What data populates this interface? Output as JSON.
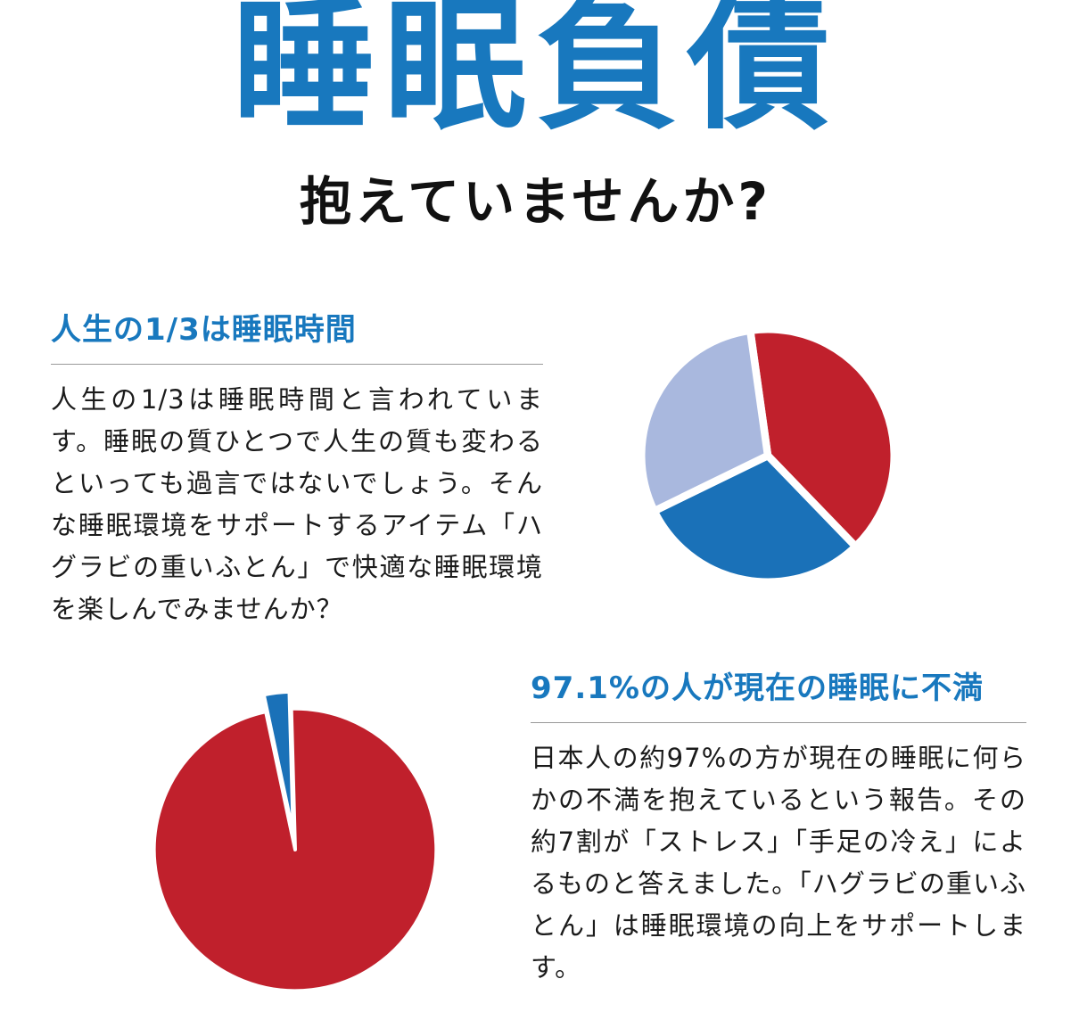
{
  "header": {
    "title": "睡眠負債",
    "subtitle": "抱えていませんか?"
  },
  "sections": {
    "sleep_time": {
      "heading": "人生の1/3は睡眠時間",
      "body": "人生の1/3は睡眠時間と言われています。睡眠の質ひとつで人生の質も変わるといっても過言ではないでしょう。そんな睡眠環境をサポートするアイテム「ハグラビの重いふとん」で快適な睡眠環境を楽しんでみませんか？"
    },
    "dissatisfaction": {
      "heading": "97.1%の人が現在の睡眠に不満",
      "body": "日本人の約97%の方が現在の睡眠に何らかの不満を抱えているという報告。その約7割が「ストレス」「手足の冷え」によるものと答えました。「ハグラビの重いふとん」は睡眠環境の向上をサポートします。"
    }
  },
  "colors": {
    "accent_blue": "#1878be",
    "pie_red": "#c0202c",
    "pie_blue": "#1a71b8",
    "pie_light_blue": "#a9b8de",
    "body_text": "#1b1b1b",
    "divider": "#999999",
    "background": "#ffffff"
  },
  "chart_data": [
    {
      "type": "pie",
      "title": "人生の1/3は睡眠時間",
      "values": [
        40,
        30,
        30
      ],
      "colors": [
        "#c0202c",
        "#1a71b8",
        "#a9b8de"
      ],
      "start_angle": -8,
      "slice_gap": 6,
      "explode": [
        0,
        0,
        0
      ],
      "legend": false
    },
    {
      "type": "pie",
      "title": "97.1%の人が現在の睡眠に不満",
      "values": [
        2.9,
        97.1
      ],
      "colors": [
        "#1a71b8",
        "#c0202c"
      ],
      "start_angle": -12,
      "slice_gap": 2.5,
      "explode": [
        0.12,
        0
      ],
      "legend": false
    }
  ]
}
